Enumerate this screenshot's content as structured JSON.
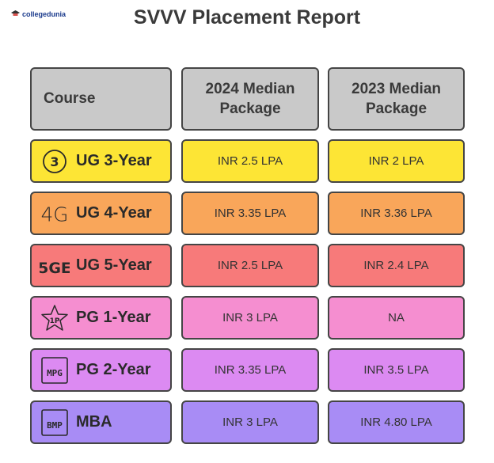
{
  "brand": {
    "name": "collegedunia"
  },
  "title": "SVVV Placement Report",
  "table": {
    "headers": {
      "course": "Course",
      "y2024": "2024 Median Package",
      "y2023": "2023 Median Package"
    },
    "rows": [
      {
        "course": "UG 3-Year",
        "icon_text": "3",
        "icon": "circled-3-icon",
        "v2024": "INR 2.5 LPA",
        "v2023": "INR 2 LPA",
        "color": "#fde535"
      },
      {
        "course": "UG 4-Year",
        "icon_text": "4G",
        "icon": "4g-icon",
        "v2024": "INR 3.35 LPA",
        "v2023": "INR 3.36 LPA",
        "color": "#f9a65a"
      },
      {
        "course": "UG 5-Year",
        "icon_text": "5GE",
        "icon": "5ge-icon",
        "v2024": "INR 2.5 LPA",
        "v2023": "INR 2.4 LPA",
        "color": "#f77a7a"
      },
      {
        "course": "PG 1-Year",
        "icon_text": "1P",
        "icon": "star-1p-icon",
        "v2024": "INR 3 LPA",
        "v2023": "NA",
        "color": "#f58ed0"
      },
      {
        "course": "PG 2-Year",
        "icon_text": "MPG",
        "icon": "mpg-icon",
        "v2024": "INR 3.35 LPA",
        "v2023": "INR 3.5 LPA",
        "color": "#dc8af2"
      },
      {
        "course": "MBA",
        "icon_text": "BMP",
        "icon": "bmp-icon",
        "v2024": "INR 3 LPA",
        "v2023": "INR 4.80 LPA",
        "color": "#a88cf5"
      }
    ]
  }
}
